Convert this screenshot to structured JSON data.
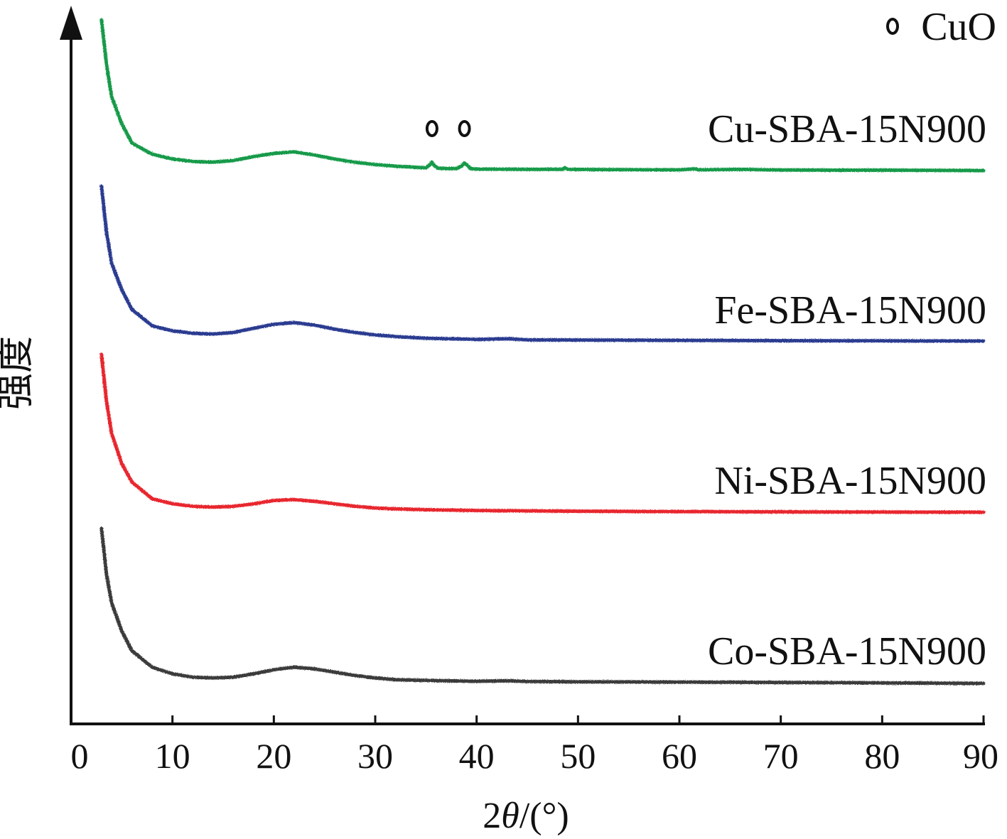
{
  "chart_data": {
    "type": "line",
    "xlabel": "2θ/(°)",
    "xlabel_parts": {
      "prefix": "2",
      "theta": "θ",
      "suffix": "/(°)"
    },
    "ylabel": "强度",
    "xlim": [
      0,
      90
    ],
    "xticks": [
      0,
      10,
      20,
      30,
      40,
      50,
      60,
      70,
      80,
      90
    ],
    "y_ticks_shown": false,
    "grid": false,
    "legend": {
      "position": "top-right",
      "entries": [
        {
          "marker": "open-circle",
          "label": "CuO"
        }
      ]
    },
    "series": [
      {
        "name": "Cu-SBA-15N900",
        "color": "#149a49",
        "x": [
          3,
          3.5,
          4,
          5,
          6,
          8,
          10,
          12,
          14,
          16,
          18,
          20,
          22,
          24,
          26,
          28,
          30,
          32,
          34,
          35,
          35.4,
          35.6,
          35.8,
          36.2,
          37,
          38,
          38.5,
          38.8,
          39,
          39.4,
          40,
          45,
          48.5,
          48.7,
          49,
          55,
          60,
          61.5,
          62,
          66,
          68,
          70,
          75,
          80,
          85,
          90
        ],
        "y": [
          100,
          72,
          52,
          35,
          23,
          16,
          13,
          11.5,
          11,
          12,
          14.5,
          16.5,
          17.5,
          15.5,
          13,
          11,
          9.5,
          8.5,
          7.8,
          7.5,
          9.5,
          11,
          9,
          7.2,
          7,
          7,
          8.5,
          10.5,
          9.5,
          7,
          6.7,
          6.5,
          6.5,
          7.5,
          6.5,
          6.3,
          6.2,
          6.8,
          6.2,
          6.5,
          6.3,
          6.1,
          6,
          6,
          5.9,
          5.8
        ]
      },
      {
        "name": "Fe-SBA-15N900",
        "color": "#2a3a90",
        "x": [
          3,
          3.5,
          4,
          5,
          6,
          8,
          10,
          12,
          14,
          16,
          18,
          20,
          22,
          24,
          26,
          28,
          30,
          32,
          35,
          40,
          43,
          45,
          50,
          60,
          70,
          80,
          90
        ],
        "y": [
          100,
          72,
          53,
          37,
          25,
          15,
          12,
          10.5,
          10,
          11,
          13.5,
          16,
          17,
          15.5,
          13,
          11,
          9.5,
          8.5,
          7.5,
          6.8,
          7.2,
          6.5,
          6.4,
          6.2,
          6,
          5.9,
          5.8
        ]
      },
      {
        "name": "Ni-SBA-15N900",
        "color": "#e8262e",
        "x": [
          3,
          3.5,
          4,
          5,
          6,
          8,
          10,
          12,
          14,
          16,
          18,
          20,
          22,
          24,
          26,
          28,
          30,
          32,
          35,
          40,
          45,
          50,
          60,
          70,
          80,
          90
        ],
        "y": [
          100,
          72,
          53,
          35,
          24,
          14,
          11,
          9.5,
          9,
          9.5,
          11,
          13,
          13.5,
          12.5,
          11,
          9.5,
          8.5,
          8,
          7.5,
          7,
          6.8,
          6.6,
          6.4,
          6.2,
          6.1,
          6
        ]
      },
      {
        "name": "Co-SBA-15N900",
        "color": "#3a3a3a",
        "x": [
          3,
          3.5,
          4,
          5,
          6,
          8,
          10,
          12,
          14,
          16,
          18,
          20,
          22,
          24,
          26,
          28,
          30,
          32,
          35,
          40,
          43,
          45,
          50,
          60,
          70,
          80,
          90
        ],
        "y": [
          100,
          72,
          55,
          38,
          26,
          16,
          12,
          10,
          9.5,
          10,
          12,
          14.5,
          16,
          15,
          13,
          11,
          9.5,
          8.5,
          8,
          7.5,
          7.8,
          7.4,
          7.2,
          7,
          6.8,
          6.5,
          6.2
        ]
      }
    ],
    "annotations": [
      {
        "marker": "open-circle",
        "x": 35.6,
        "series": "Cu-SBA-15N900",
        "label": "CuO"
      },
      {
        "marker": "open-circle",
        "x": 38.8,
        "series": "Cu-SBA-15N900",
        "label": "CuO"
      }
    ]
  }
}
